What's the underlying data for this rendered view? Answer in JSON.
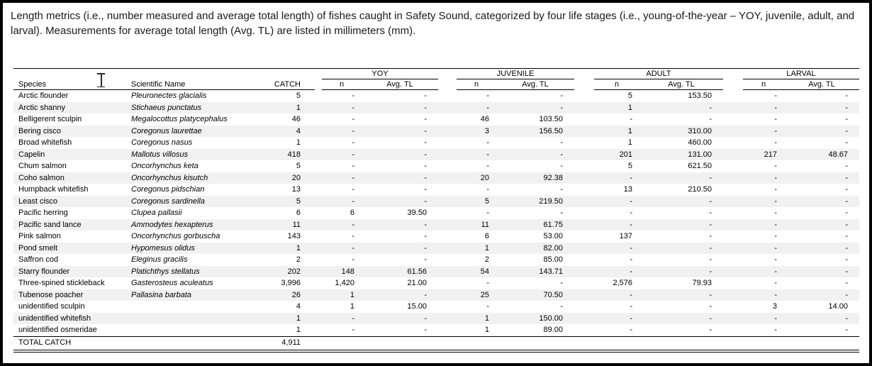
{
  "caption": "Length metrics (i.e., number measured and average total length) of fishes caught in Safety Sound, categorized by four life stages (i.e., young-of-the-year – YOY, juvenile, adult, and larval). Measurements for average total length (Avg. TL) are listed in millimeters (mm).",
  "table": {
    "headers": {
      "species": "Species",
      "scientific_name": "Scientific Name",
      "catch": "CATCH",
      "n": "n",
      "avg_tl": "Avg. TL"
    },
    "groups": [
      "YOY",
      "JUVENILE",
      "ADULT",
      "LARVAL"
    ],
    "rows": [
      {
        "sp": "Arctic flounder",
        "sci": "Pleuronectes glacialis",
        "catch": "5",
        "yn": "-",
        "yt": "-",
        "jn": "-",
        "jt": "-",
        "an": "5",
        "at": "153.50",
        "ln": "-",
        "lt": "-"
      },
      {
        "sp": "Arctic shanny",
        "sci": "Stichaeus punctatus",
        "catch": "1",
        "yn": "-",
        "yt": "-",
        "jn": "-",
        "jt": "-",
        "an": "1",
        "at": "-",
        "ln": "-",
        "lt": "-"
      },
      {
        "sp": "Belligerent sculpin",
        "sci": "Megalocottus platycephalus",
        "catch": "46",
        "yn": "-",
        "yt": "-",
        "jn": "46",
        "jt": "103.50",
        "an": "-",
        "at": "-",
        "ln": "-",
        "lt": "-"
      },
      {
        "sp": "Bering cisco",
        "sci": "Coregonus laurettae",
        "catch": "4",
        "yn": "-",
        "yt": "-",
        "jn": "3",
        "jt": "156.50",
        "an": "1",
        "at": "310.00",
        "ln": "-",
        "lt": "-"
      },
      {
        "sp": "Broad whitefish",
        "sci": "Coregonus nasus",
        "catch": "1",
        "yn": "-",
        "yt": "-",
        "jn": "-",
        "jt": "-",
        "an": "1",
        "at": "460.00",
        "ln": "-",
        "lt": "-"
      },
      {
        "sp": "Capelin",
        "sci": "Mallotus villosus",
        "catch": "418",
        "yn": "-",
        "yt": "-",
        "jn": "-",
        "jt": "-",
        "an": "201",
        "at": "131.00",
        "ln": "217",
        "lt": "48.67"
      },
      {
        "sp": "Chum salmon",
        "sci": "Oncorhynchus keta",
        "catch": "5",
        "yn": "-",
        "yt": "-",
        "jn": "-",
        "jt": "-",
        "an": "5",
        "at": "621.50",
        "ln": "-",
        "lt": "-"
      },
      {
        "sp": "Coho salmon",
        "sci": "Oncorhynchus kisutch",
        "catch": "20",
        "yn": "-",
        "yt": "-",
        "jn": "20",
        "jt": "92.38",
        "an": "-",
        "at": "-",
        "ln": "-",
        "lt": "-"
      },
      {
        "sp": "Humpback whitefish",
        "sci": "Coregonus pidschian",
        "catch": "13",
        "yn": "-",
        "yt": "-",
        "jn": "-",
        "jt": "-",
        "an": "13",
        "at": "210.50",
        "ln": "-",
        "lt": "-"
      },
      {
        "sp": "Least cisco",
        "sci": "Coregonus sardinella",
        "catch": "5",
        "yn": "-",
        "yt": "-",
        "jn": "5",
        "jt": "219.50",
        "an": "-",
        "at": "-",
        "ln": "-",
        "lt": "-"
      },
      {
        "sp": "Pacific herring",
        "sci": "Clupea pallasii",
        "catch": "6",
        "yn": "6",
        "yt": "39.50",
        "jn": "-",
        "jt": "-",
        "an": "-",
        "at": "-",
        "ln": "-",
        "lt": "-"
      },
      {
        "sp": "Pacific sand lance",
        "sci": "Ammodytes hexapterus",
        "catch": "11",
        "yn": "-",
        "yt": "-",
        "jn": "11",
        "jt": "61.75",
        "an": "-",
        "at": "-",
        "ln": "-",
        "lt": "-"
      },
      {
        "sp": "Pink salmon",
        "sci": "Oncorhynchus gorbuscha",
        "catch": "143",
        "yn": "-",
        "yt": "-",
        "jn": "6",
        "jt": "53.00",
        "an": "137",
        "at": "-",
        "ln": "-",
        "lt": "-"
      },
      {
        "sp": "Pond smelt",
        "sci": "Hypomesus olidus",
        "catch": "1",
        "yn": "-",
        "yt": "-",
        "jn": "1",
        "jt": "82.00",
        "an": "-",
        "at": "-",
        "ln": "-",
        "lt": "-"
      },
      {
        "sp": "Saffron cod",
        "sci": "Eleginus gracilis",
        "catch": "2",
        "yn": "-",
        "yt": "-",
        "jn": "2",
        "jt": "85.00",
        "an": "-",
        "at": "-",
        "ln": "-",
        "lt": "-"
      },
      {
        "sp": "Starry flounder",
        "sci": "Platichthys stellatus",
        "catch": "202",
        "yn": "148",
        "yt": "61.56",
        "jn": "54",
        "jt": "143.71",
        "an": "-",
        "at": "-",
        "ln": "-",
        "lt": "-"
      },
      {
        "sp": "Three-spined stickleback",
        "sci": "Gasterosteus aculeatus",
        "catch": "3,996",
        "yn": "1,420",
        "yt": "21.00",
        "jn": "-",
        "jt": "-",
        "an": "2,576",
        "at": "79.93",
        "ln": "-",
        "lt": "-"
      },
      {
        "sp": "Tubenose poacher",
        "sci": "Pallasina barbata",
        "catch": "26",
        "yn": "1",
        "yt": "-",
        "jn": "25",
        "jt": "70.50",
        "an": "-",
        "at": "-",
        "ln": "-",
        "lt": "-"
      },
      {
        "sp": "unidentified sculpin",
        "sci": "",
        "catch": "4",
        "yn": "1",
        "yt": "15.00",
        "jn": "-",
        "jt": "-",
        "an": "-",
        "at": "-",
        "ln": "3",
        "lt": "14.00"
      },
      {
        "sp": "unidentified whitefish",
        "sci": "",
        "catch": "1",
        "yn": "-",
        "yt": "-",
        "jn": "1",
        "jt": "150.00",
        "an": "-",
        "at": "-",
        "ln": "-",
        "lt": "-"
      },
      {
        "sp": "unidentified osmeridae",
        "sci": "",
        "catch": "1",
        "yn": "-",
        "yt": "-",
        "jn": "1",
        "jt": "89.00",
        "an": "-",
        "at": "-",
        "ln": "-",
        "lt": "-"
      }
    ],
    "total": {
      "label": "TOTAL CATCH",
      "catch": "4,911"
    }
  },
  "colors": {
    "zebra": "#f1f1f1",
    "rule": "#000000",
    "frame": "#000000",
    "text": "#000000"
  },
  "cursor": "text-ibeam"
}
